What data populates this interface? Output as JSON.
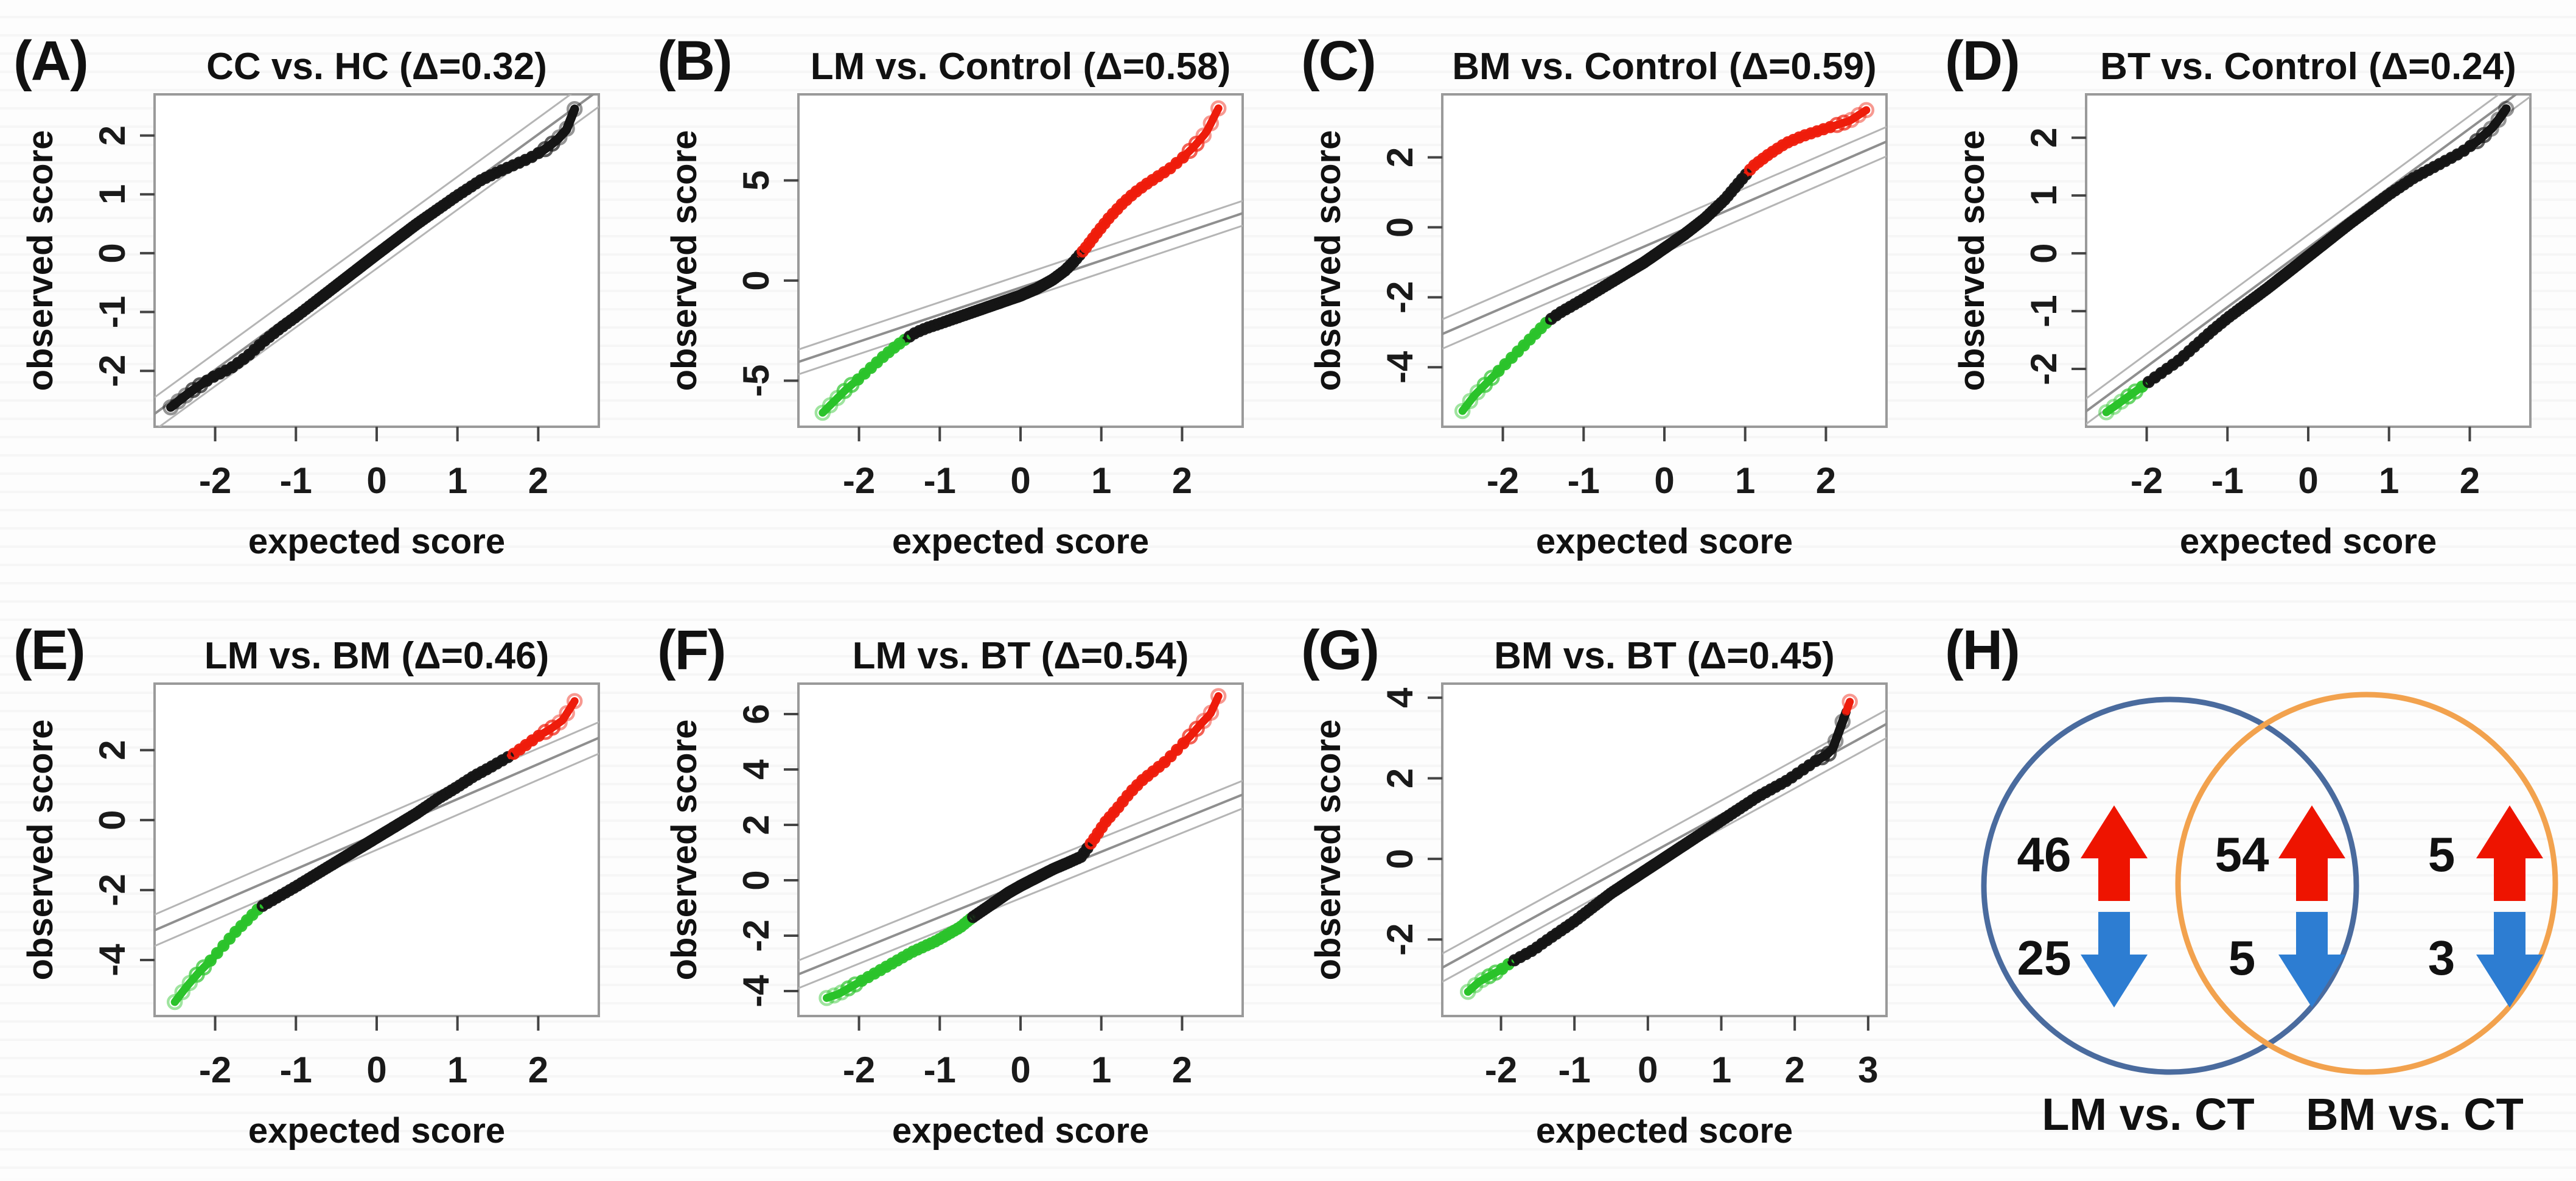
{
  "figure_description": "Quantile-quantile plots of observed vs expected scores for group comparisons, with significantly up (red) and down (green) tails, and a Venn diagram of differential features",
  "colors": {
    "point_black": "#151515",
    "point_red": "#ee1c0c",
    "point_green": "#2bc32b",
    "ref_center": "#8f8f8f",
    "ref_envelope": "#b5b5b5",
    "box_border": "#9a9a9a",
    "tick": "#444444",
    "venn_left": "#4a6b9e",
    "venn_right": "#f2a24e",
    "up_arrow": "#ee1400",
    "down_arrow": "#2d7dd2"
  },
  "chart_data": [
    {
      "type": "scatter",
      "panel_letter": "(A)",
      "title": "CC vs. HC (Δ=0.32)",
      "delta": 0.32,
      "xlabel": "expected score",
      "ylabel": "observed score",
      "xlim": [
        -2.75,
        2.75
      ],
      "ylim": [
        -2.95,
        2.7
      ],
      "xticks": [
        -2,
        -1,
        0,
        1,
        2
      ],
      "yticks": [
        -2,
        -1,
        0,
        1,
        2
      ],
      "ref": {
        "slope": 1.0,
        "intercept": 0.02,
        "offset": 0.28
      },
      "green_max": null,
      "red_min": null,
      "curve": [
        [
          -2.55,
          -2.62
        ],
        [
          -2.3,
          -2.35
        ],
        [
          -2.05,
          -2.12
        ],
        [
          -1.8,
          -1.95
        ],
        [
          -1.6,
          -1.75
        ],
        [
          -1.4,
          -1.5
        ],
        [
          -1.2,
          -1.28
        ],
        [
          -1.0,
          -1.08
        ],
        [
          -0.5,
          -0.55
        ],
        [
          0,
          -0.02
        ],
        [
          0.5,
          0.5
        ],
        [
          1.0,
          0.98
        ],
        [
          1.3,
          1.25
        ],
        [
          1.5,
          1.38
        ],
        [
          1.7,
          1.5
        ],
        [
          1.9,
          1.62
        ],
        [
          2.1,
          1.78
        ],
        [
          2.25,
          1.95
        ],
        [
          2.35,
          2.1
        ],
        [
          2.45,
          2.45
        ]
      ]
    },
    {
      "type": "scatter",
      "panel_letter": "(B)",
      "title": "LM vs. Control (Δ=0.58)",
      "delta": 0.58,
      "xlabel": "expected score",
      "ylabel": "observed score",
      "xlim": [
        -2.75,
        2.75
      ],
      "ylim": [
        -7.3,
        9.3
      ],
      "xticks": [
        -2,
        -1,
        0,
        1,
        2
      ],
      "yticks": [
        -5,
        0,
        5
      ],
      "ref": {
        "slope": 1.35,
        "intercept": -0.35,
        "offset": 0.62
      },
      "green_max": -1.42,
      "red_min": 0.74,
      "curve": [
        [
          -2.45,
          -6.6
        ],
        [
          -2.3,
          -6.0
        ],
        [
          -2.15,
          -5.4
        ],
        [
          -2.0,
          -4.9
        ],
        [
          -1.85,
          -4.35
        ],
        [
          -1.7,
          -3.8
        ],
        [
          -1.55,
          -3.3
        ],
        [
          -1.45,
          -3.0
        ],
        [
          -1.3,
          -2.6
        ],
        [
          -1.15,
          -2.35
        ],
        [
          -1.0,
          -2.15
        ],
        [
          -0.75,
          -1.8
        ],
        [
          -0.5,
          -1.45
        ],
        [
          -0.25,
          -1.1
        ],
        [
          0,
          -0.75
        ],
        [
          0.2,
          -0.4
        ],
        [
          0.4,
          0.05
        ],
        [
          0.55,
          0.5
        ],
        [
          0.65,
          0.9
        ],
        [
          0.8,
          1.6
        ],
        [
          0.95,
          2.4
        ],
        [
          1.1,
          3.15
        ],
        [
          1.25,
          3.8
        ],
        [
          1.4,
          4.35
        ],
        [
          1.55,
          4.8
        ],
        [
          1.7,
          5.2
        ],
        [
          1.85,
          5.6
        ],
        [
          2.0,
          6.1
        ],
        [
          2.15,
          6.7
        ],
        [
          2.3,
          7.4
        ],
        [
          2.45,
          8.6
        ]
      ]
    },
    {
      "type": "scatter",
      "panel_letter": "(C)",
      "title": "BM vs. Control (Δ=0.59)",
      "delta": 0.59,
      "xlabel": "expected score",
      "ylabel": "observed score",
      "xlim": [
        -2.75,
        2.75
      ],
      "ylim": [
        -5.7,
        3.8
      ],
      "xticks": [
        -2,
        -1,
        0,
        1,
        2
      ],
      "yticks": [
        -4,
        -2,
        0,
        2
      ],
      "ref": {
        "slope": 1.0,
        "intercept": -0.3,
        "offset": 0.42
      },
      "green_max": -1.42,
      "red_min": 1.02,
      "curve": [
        [
          -2.5,
          -5.25
        ],
        [
          -2.35,
          -4.8
        ],
        [
          -2.2,
          -4.45
        ],
        [
          -2.05,
          -4.1
        ],
        [
          -1.9,
          -3.75
        ],
        [
          -1.75,
          -3.4
        ],
        [
          -1.6,
          -3.05
        ],
        [
          -1.45,
          -2.7
        ],
        [
          -1.3,
          -2.45
        ],
        [
          -1.15,
          -2.25
        ],
        [
          -1.0,
          -2.05
        ],
        [
          -0.75,
          -1.7
        ],
        [
          -0.5,
          -1.35
        ],
        [
          -0.25,
          -1.0
        ],
        [
          0,
          -0.6
        ],
        [
          0.25,
          -0.2
        ],
        [
          0.5,
          0.25
        ],
        [
          0.75,
          0.8
        ],
        [
          0.95,
          1.35
        ],
        [
          1.1,
          1.75
        ],
        [
          1.3,
          2.1
        ],
        [
          1.5,
          2.4
        ],
        [
          1.7,
          2.6
        ],
        [
          1.9,
          2.75
        ],
        [
          2.1,
          2.9
        ],
        [
          2.3,
          3.05
        ],
        [
          2.5,
          3.35
        ]
      ]
    },
    {
      "type": "scatter",
      "panel_letter": "(D)",
      "title": "BT vs. Control (Δ=0.24)",
      "delta": 0.24,
      "xlabel": "expected score",
      "ylabel": "observed score",
      "xlim": [
        -2.75,
        2.75
      ],
      "ylim": [
        -3.0,
        2.75
      ],
      "xticks": [
        -2,
        -1,
        0,
        1,
        2
      ],
      "yticks": [
        -2,
        -1,
        0,
        1,
        2
      ],
      "ref": {
        "slope": 1.03,
        "intercept": 0.1,
        "offset": 0.22
      },
      "green_max": -1.98,
      "red_min": null,
      "curve": [
        [
          -2.5,
          -2.75
        ],
        [
          -2.3,
          -2.55
        ],
        [
          -2.1,
          -2.35
        ],
        [
          -1.95,
          -2.2
        ],
        [
          -1.8,
          -2.05
        ],
        [
          -1.6,
          -1.85
        ],
        [
          -1.4,
          -1.6
        ],
        [
          -1.2,
          -1.35
        ],
        [
          -1.0,
          -1.12
        ],
        [
          -0.5,
          -0.6
        ],
        [
          0,
          -0.05
        ],
        [
          0.5,
          0.5
        ],
        [
          1.0,
          1.02
        ],
        [
          1.3,
          1.3
        ],
        [
          1.5,
          1.45
        ],
        [
          1.7,
          1.6
        ],
        [
          1.9,
          1.75
        ],
        [
          2.1,
          1.95
        ],
        [
          2.3,
          2.2
        ],
        [
          2.45,
          2.5
        ]
      ]
    },
    {
      "type": "scatter",
      "panel_letter": "(E)",
      "title": "LM vs. BM (Δ=0.46)",
      "delta": 0.46,
      "xlabel": "expected score",
      "ylabel": "observed score",
      "xlim": [
        -2.75,
        2.75
      ],
      "ylim": [
        -5.6,
        3.9
      ],
      "xticks": [
        -2,
        -1,
        0,
        1,
        2
      ],
      "yticks": [
        -4,
        -2,
        0,
        2
      ],
      "ref": {
        "slope": 1.0,
        "intercept": -0.4,
        "offset": 0.45
      },
      "green_max": -1.42,
      "red_min": 1.66,
      "curve": [
        [
          -2.5,
          -5.2
        ],
        [
          -2.35,
          -4.75
        ],
        [
          -2.2,
          -4.35
        ],
        [
          -2.05,
          -4.0
        ],
        [
          -1.9,
          -3.6
        ],
        [
          -1.75,
          -3.2
        ],
        [
          -1.6,
          -2.85
        ],
        [
          -1.45,
          -2.5
        ],
        [
          -1.3,
          -2.3
        ],
        [
          -1.15,
          -2.1
        ],
        [
          -1.0,
          -1.9
        ],
        [
          -0.75,
          -1.55
        ],
        [
          -0.5,
          -1.2
        ],
        [
          -0.25,
          -0.85
        ],
        [
          0,
          -0.5
        ],
        [
          0.25,
          -0.15
        ],
        [
          0.5,
          0.2
        ],
        [
          0.75,
          0.6
        ],
        [
          1.0,
          0.95
        ],
        [
          1.2,
          1.25
        ],
        [
          1.4,
          1.5
        ],
        [
          1.55,
          1.7
        ],
        [
          1.7,
          1.9
        ],
        [
          1.85,
          2.15
        ],
        [
          2.0,
          2.4
        ],
        [
          2.15,
          2.6
        ],
        [
          2.3,
          2.85
        ],
        [
          2.45,
          3.4
        ]
      ]
    },
    {
      "type": "scatter",
      "panel_letter": "(F)",
      "title": "LM vs. BT (Δ=0.54)",
      "delta": 0.54,
      "xlabel": "expected score",
      "ylabel": "observed score",
      "xlim": [
        -2.75,
        2.75
      ],
      "ylim": [
        -4.9,
        7.1
      ],
      "xticks": [
        -2,
        -1,
        0,
        1,
        2
      ],
      "yticks": [
        -4,
        -2,
        0,
        2,
        4,
        6
      ],
      "ref": {
        "slope": 1.18,
        "intercept": -0.15,
        "offset": 0.5
      },
      "green_max": -0.62,
      "red_min": 0.86,
      "curve": [
        [
          -2.4,
          -4.25
        ],
        [
          -2.25,
          -4.1
        ],
        [
          -2.1,
          -3.85
        ],
        [
          -1.95,
          -3.6
        ],
        [
          -1.8,
          -3.35
        ],
        [
          -1.65,
          -3.1
        ],
        [
          -1.5,
          -2.85
        ],
        [
          -1.35,
          -2.6
        ],
        [
          -1.2,
          -2.4
        ],
        [
          -1.05,
          -2.2
        ],
        [
          -0.9,
          -1.95
        ],
        [
          -0.75,
          -1.7
        ],
        [
          -0.6,
          -1.35
        ],
        [
          -0.45,
          -1.05
        ],
        [
          -0.3,
          -0.75
        ],
        [
          -0.15,
          -0.45
        ],
        [
          0,
          -0.2
        ],
        [
          0.2,
          0.1
        ],
        [
          0.4,
          0.4
        ],
        [
          0.6,
          0.65
        ],
        [
          0.75,
          0.85
        ],
        [
          0.9,
          1.45
        ],
        [
          1.05,
          2.1
        ],
        [
          1.2,
          2.6
        ],
        [
          1.35,
          3.15
        ],
        [
          1.5,
          3.6
        ],
        [
          1.65,
          3.95
        ],
        [
          1.8,
          4.3
        ],
        [
          1.95,
          4.75
        ],
        [
          2.1,
          5.2
        ],
        [
          2.25,
          5.7
        ],
        [
          2.35,
          6.0
        ],
        [
          2.45,
          6.65
        ]
      ]
    },
    {
      "type": "scatter",
      "panel_letter": "(G)",
      "title": "BM vs. BT (Δ=0.45)",
      "delta": 0.45,
      "xlabel": "expected score",
      "ylabel": "observed score",
      "xlim": [
        -2.8,
        3.25
      ],
      "ylim": [
        -3.9,
        4.35
      ],
      "xticks": [
        -2,
        -1,
        0,
        1,
        2,
        3
      ],
      "yticks": [
        -2,
        0,
        2,
        4
      ],
      "ref": {
        "slope": 1.0,
        "intercept": 0.1,
        "offset": 0.35
      },
      "green_max": -1.85,
      "red_min": 2.7,
      "curve": [
        [
          -2.45,
          -3.3
        ],
        [
          -2.3,
          -3.05
        ],
        [
          -2.15,
          -2.9
        ],
        [
          -2.0,
          -2.75
        ],
        [
          -1.85,
          -2.55
        ],
        [
          -1.7,
          -2.4
        ],
        [
          -1.55,
          -2.25
        ],
        [
          -1.4,
          -2.05
        ],
        [
          -1.2,
          -1.8
        ],
        [
          -1.0,
          -1.55
        ],
        [
          -0.75,
          -1.2
        ],
        [
          -0.5,
          -0.85
        ],
        [
          -0.25,
          -0.55
        ],
        [
          0,
          -0.25
        ],
        [
          0.25,
          0.05
        ],
        [
          0.5,
          0.35
        ],
        [
          0.75,
          0.65
        ],
        [
          1.0,
          0.95
        ],
        [
          1.25,
          1.25
        ],
        [
          1.5,
          1.55
        ],
        [
          1.7,
          1.75
        ],
        [
          1.9,
          1.95
        ],
        [
          2.1,
          2.2
        ],
        [
          2.3,
          2.45
        ],
        [
          2.5,
          2.65
        ],
        [
          2.75,
          3.9
        ]
      ]
    },
    {
      "type": "venn",
      "panel_letter": "(H)",
      "sets": [
        {
          "label": "LM vs. CT",
          "color_key": "venn_left"
        },
        {
          "label": "BM vs. CT",
          "color_key": "venn_right"
        }
      ],
      "regions": [
        {
          "name": "left-only",
          "up": "46",
          "down": "25"
        },
        {
          "name": "intersection",
          "up": "54",
          "down": "5"
        },
        {
          "name": "right-only",
          "up": "5",
          "down": "3"
        }
      ]
    }
  ]
}
